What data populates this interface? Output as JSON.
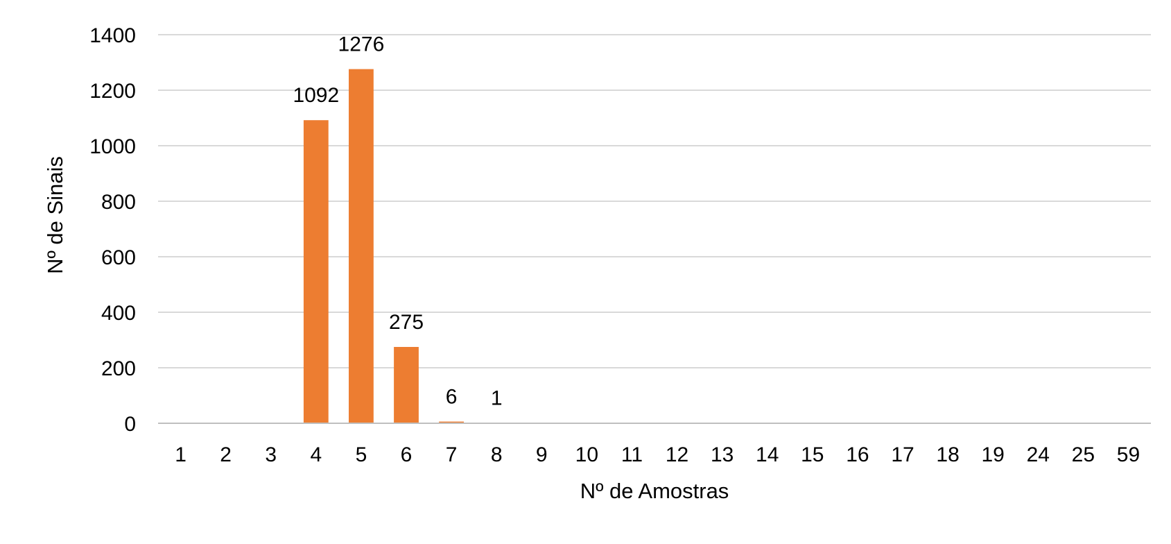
{
  "chart_data": {
    "type": "bar",
    "title": "",
    "xlabel": "Nº de Amostras",
    "ylabel": "Nº de Sinais",
    "categories": [
      "1",
      "2",
      "3",
      "4",
      "5",
      "6",
      "7",
      "8",
      "9",
      "10",
      "11",
      "12",
      "13",
      "14",
      "15",
      "16",
      "17",
      "18",
      "19",
      "24",
      "25",
      "59"
    ],
    "values": [
      0,
      0,
      0,
      1092,
      1276,
      275,
      6,
      1,
      0,
      0,
      0,
      0,
      0,
      0,
      0,
      0,
      0,
      0,
      0,
      0,
      0,
      0
    ],
    "data_labels": [
      null,
      null,
      null,
      "1092",
      "1276",
      "275",
      "6",
      "1",
      null,
      null,
      null,
      null,
      null,
      null,
      null,
      null,
      null,
      null,
      null,
      null,
      null,
      null
    ],
    "ylim": [
      0,
      1400
    ],
    "yticks": [
      0,
      200,
      400,
      600,
      800,
      1000,
      1200,
      1400
    ],
    "grid": true,
    "legend": "none",
    "bar_color": "#ED7D31",
    "grid_color": "#D9D9D9",
    "axis_color": "#BFBFBF"
  }
}
